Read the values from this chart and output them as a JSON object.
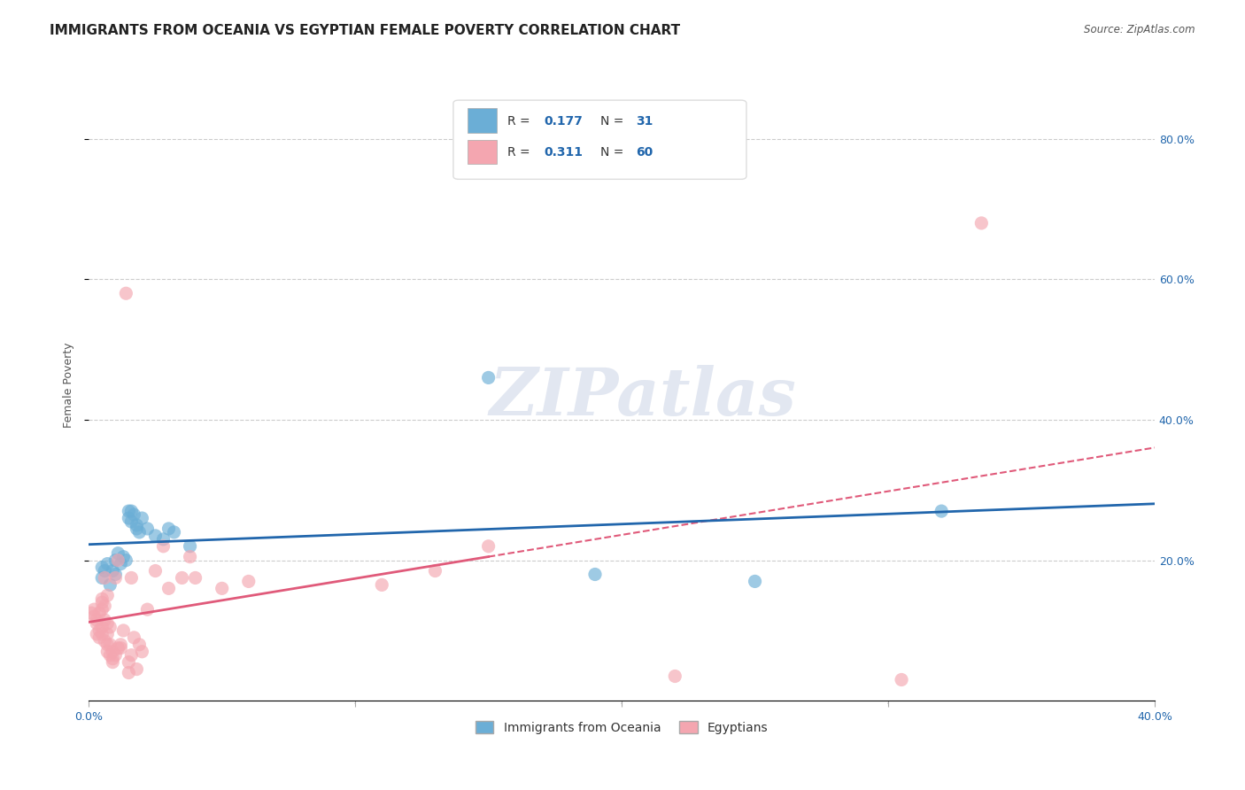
{
  "title": "IMMIGRANTS FROM OCEANIA VS EGYPTIAN FEMALE POVERTY CORRELATION CHART",
  "source": "Source: ZipAtlas.com",
  "xlabel": "",
  "ylabel": "Female Poverty",
  "watermark": "ZIPatlas",
  "xlim": [
    0.0,
    0.4
  ],
  "ylim": [
    0.0,
    0.9
  ],
  "xtick_pos": [
    0.0,
    0.1,
    0.2,
    0.3,
    0.4
  ],
  "xtick_labels": [
    "0.0%",
    "",
    "",
    "",
    "40.0%"
  ],
  "ytick_labels_right": [
    "80.0%",
    "60.0%",
    "40.0%",
    "20.0%"
  ],
  "ytick_positions_right": [
    0.8,
    0.6,
    0.4,
    0.2
  ],
  "R_blue": 0.177,
  "N_blue": 31,
  "R_pink": 0.311,
  "N_pink": 60,
  "blue_color": "#6baed6",
  "pink_color": "#f4a6b0",
  "blue_line_color": "#2166ac",
  "pink_line_color": "#e05a7a",
  "blue_scatter": [
    [
      0.005,
      0.19
    ],
    [
      0.005,
      0.175
    ],
    [
      0.006,
      0.185
    ],
    [
      0.007,
      0.195
    ],
    [
      0.008,
      0.165
    ],
    [
      0.009,
      0.185
    ],
    [
      0.01,
      0.18
    ],
    [
      0.01,
      0.2
    ],
    [
      0.011,
      0.21
    ],
    [
      0.012,
      0.195
    ],
    [
      0.013,
      0.205
    ],
    [
      0.014,
      0.2
    ],
    [
      0.015,
      0.27
    ],
    [
      0.015,
      0.26
    ],
    [
      0.016,
      0.255
    ],
    [
      0.016,
      0.27
    ],
    [
      0.017,
      0.265
    ],
    [
      0.018,
      0.245
    ],
    [
      0.018,
      0.25
    ],
    [
      0.019,
      0.24
    ],
    [
      0.02,
      0.26
    ],
    [
      0.022,
      0.245
    ],
    [
      0.025,
      0.235
    ],
    [
      0.028,
      0.23
    ],
    [
      0.03,
      0.245
    ],
    [
      0.032,
      0.24
    ],
    [
      0.038,
      0.22
    ],
    [
      0.15,
      0.46
    ],
    [
      0.19,
      0.18
    ],
    [
      0.25,
      0.17
    ],
    [
      0.32,
      0.27
    ]
  ],
  "pink_scatter": [
    [
      0.001,
      0.125
    ],
    [
      0.002,
      0.12
    ],
    [
      0.002,
      0.13
    ],
    [
      0.003,
      0.11
    ],
    [
      0.003,
      0.095
    ],
    [
      0.003,
      0.115
    ],
    [
      0.004,
      0.1
    ],
    [
      0.004,
      0.125
    ],
    [
      0.004,
      0.09
    ],
    [
      0.005,
      0.105
    ],
    [
      0.005,
      0.13
    ],
    [
      0.005,
      0.14
    ],
    [
      0.005,
      0.145
    ],
    [
      0.005,
      0.095
    ],
    [
      0.006,
      0.175
    ],
    [
      0.006,
      0.115
    ],
    [
      0.006,
      0.135
    ],
    [
      0.006,
      0.085
    ],
    [
      0.007,
      0.15
    ],
    [
      0.007,
      0.095
    ],
    [
      0.007,
      0.08
    ],
    [
      0.007,
      0.11
    ],
    [
      0.007,
      0.07
    ],
    [
      0.008,
      0.065
    ],
    [
      0.008,
      0.08
    ],
    [
      0.008,
      0.105
    ],
    [
      0.009,
      0.055
    ],
    [
      0.009,
      0.06
    ],
    [
      0.009,
      0.07
    ],
    [
      0.01,
      0.175
    ],
    [
      0.01,
      0.065
    ],
    [
      0.011,
      0.2
    ],
    [
      0.011,
      0.075
    ],
    [
      0.012,
      0.08
    ],
    [
      0.012,
      0.075
    ],
    [
      0.013,
      0.1
    ],
    [
      0.014,
      0.58
    ],
    [
      0.015,
      0.04
    ],
    [
      0.015,
      0.055
    ],
    [
      0.016,
      0.175
    ],
    [
      0.016,
      0.065
    ],
    [
      0.017,
      0.09
    ],
    [
      0.018,
      0.045
    ],
    [
      0.019,
      0.08
    ],
    [
      0.02,
      0.07
    ],
    [
      0.022,
      0.13
    ],
    [
      0.025,
      0.185
    ],
    [
      0.028,
      0.22
    ],
    [
      0.03,
      0.16
    ],
    [
      0.035,
      0.175
    ],
    [
      0.038,
      0.205
    ],
    [
      0.04,
      0.175
    ],
    [
      0.05,
      0.16
    ],
    [
      0.06,
      0.17
    ],
    [
      0.11,
      0.165
    ],
    [
      0.13,
      0.185
    ],
    [
      0.15,
      0.22
    ],
    [
      0.22,
      0.035
    ],
    [
      0.305,
      0.03
    ],
    [
      0.335,
      0.68
    ]
  ],
  "legend_label_blue": "Immigrants from Oceania",
  "legend_label_pink": "Egyptians",
  "title_fontsize": 11,
  "axis_label_fontsize": 9,
  "tick_fontsize": 9,
  "background_color": "#ffffff",
  "grid_color": "#cccccc"
}
